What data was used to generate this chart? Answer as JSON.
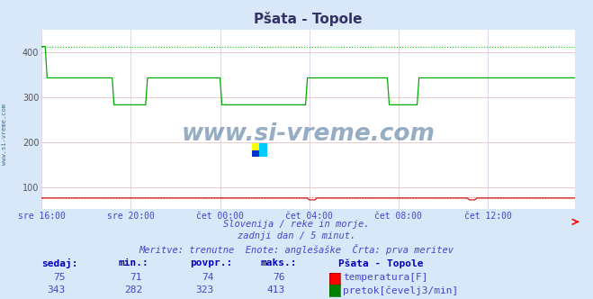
{
  "title": "Pšata - Topole",
  "bg_color": "#d8e8f8",
  "plot_bg_color": "#ffffff",
  "grid_color_h": "#e8c0c0",
  "grid_color_v": "#d8d0e8",
  "text_color": "#4444cc",
  "title_color": "#333366",
  "ylim": [
    50,
    450
  ],
  "yticks": [
    100,
    200,
    300,
    400
  ],
  "n_points": 288,
  "temp_color": "#cc0000",
  "flow_color": "#00aa00",
  "temp_dotted_color": "#ff4444",
  "flow_dotted_color": "#00cc00",
  "watermark_color": "#1a5276",
  "subtitle1": "Slovenija / reke in morje.",
  "subtitle2": "zadnji dan / 5 minut.",
  "subtitle3": "Meritve: trenutne  Enote: anglešaške  Črta: prva meritev",
  "legend_title": "Pšata - Topole",
  "legend_temp": "temperatura[F]",
  "legend_flow": "pretok[čevelj3/min]",
  "stat_headers": [
    "sedaj:",
    "min.:",
    "povpr.:",
    "maks.:"
  ],
  "temp_stats": [
    "75",
    "71",
    "74",
    "76"
  ],
  "flow_stats": [
    "343",
    "282",
    "323",
    "413"
  ],
  "xtick_labels": [
    "sre 16:00",
    "sre 20:00",
    "čet 00:00",
    "čet 04:00",
    "čet 08:00",
    "čet 12:00"
  ],
  "xtick_positions": [
    0,
    48,
    96,
    144,
    192,
    240
  ]
}
